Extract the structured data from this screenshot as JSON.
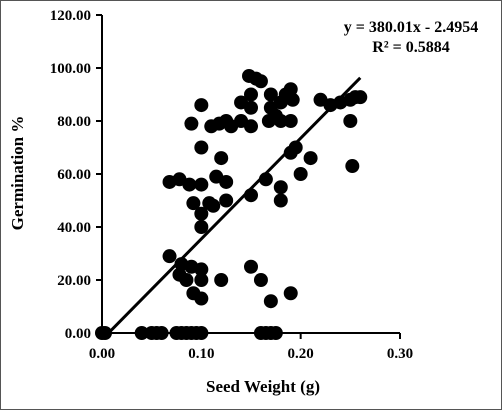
{
  "chart_data": {
    "type": "scatter",
    "title": "",
    "xlabel": "Seed Weight (g)",
    "ylabel": "Germination %",
    "xlim": [
      0,
      0.3
    ],
    "ylim": [
      0,
      120
    ],
    "x_ticks": [
      0.0,
      0.1,
      0.2,
      0.3
    ],
    "x_tick_labels": [
      "0.00",
      "0.10",
      "0.20",
      "0.30"
    ],
    "y_ticks": [
      0,
      20,
      40,
      60,
      80,
      100,
      120
    ],
    "y_tick_labels": [
      "0.00",
      "20.00",
      "40.00",
      "60.00",
      "80.00",
      "100.00",
      "120.00"
    ],
    "grid": false,
    "legend": "none",
    "annotations": [
      "y = 380.01x - 2.4954",
      "R² = 0.5884"
    ],
    "trendline": {
      "slope": 380.01,
      "intercept": -2.4954,
      "x_range": [
        0.007,
        0.26
      ]
    },
    "colors": {
      "points": "#000000",
      "trendline": "#000000",
      "axes": "#000000"
    },
    "series": [
      {
        "points": [
          [
            0.0,
            0
          ],
          [
            0.003,
            0
          ],
          [
            0.04,
            0
          ],
          [
            0.05,
            0
          ],
          [
            0.055,
            0
          ],
          [
            0.06,
            0
          ],
          [
            0.075,
            0
          ],
          [
            0.08,
            0
          ],
          [
            0.085,
            0
          ],
          [
            0.09,
            0
          ],
          [
            0.095,
            0
          ],
          [
            0.1,
            0
          ],
          [
            0.16,
            0
          ],
          [
            0.165,
            0
          ],
          [
            0.17,
            0
          ],
          [
            0.175,
            0
          ],
          [
            0.068,
            57
          ],
          [
            0.078,
            58
          ],
          [
            0.088,
            56
          ],
          [
            0.1,
            56
          ],
          [
            0.092,
            49
          ],
          [
            0.1,
            45
          ],
          [
            0.108,
            49
          ],
          [
            0.112,
            48
          ],
          [
            0.115,
            59
          ],
          [
            0.125,
            50
          ],
          [
            0.125,
            57
          ],
          [
            0.12,
            66
          ],
          [
            0.1,
            40
          ],
          [
            0.1,
            70
          ],
          [
            0.1,
            86
          ],
          [
            0.09,
            79
          ],
          [
            0.11,
            78
          ],
          [
            0.118,
            79
          ],
          [
            0.125,
            80
          ],
          [
            0.13,
            78
          ],
          [
            0.14,
            80
          ],
          [
            0.14,
            87
          ],
          [
            0.15,
            78
          ],
          [
            0.15,
            85
          ],
          [
            0.15,
            90
          ],
          [
            0.148,
            97
          ],
          [
            0.155,
            96
          ],
          [
            0.16,
            95
          ],
          [
            0.165,
            58
          ],
          [
            0.168,
            80
          ],
          [
            0.17,
            85
          ],
          [
            0.17,
            90
          ],
          [
            0.175,
            82
          ],
          [
            0.18,
            80
          ],
          [
            0.18,
            87
          ],
          [
            0.185,
            90
          ],
          [
            0.19,
            80
          ],
          [
            0.192,
            88
          ],
          [
            0.19,
            92
          ],
          [
            0.195,
            70
          ],
          [
            0.19,
            68
          ],
          [
            0.2,
            60
          ],
          [
            0.21,
            66
          ],
          [
            0.22,
            88
          ],
          [
            0.23,
            86
          ],
          [
            0.24,
            87
          ],
          [
            0.25,
            88
          ],
          [
            0.255,
            89
          ],
          [
            0.26,
            89
          ],
          [
            0.25,
            80
          ],
          [
            0.252,
            63
          ],
          [
            0.18,
            55
          ],
          [
            0.18,
            50
          ],
          [
            0.15,
            52
          ],
          [
            0.068,
            29
          ],
          [
            0.078,
            22
          ],
          [
            0.08,
            26
          ],
          [
            0.085,
            20
          ],
          [
            0.09,
            25
          ],
          [
            0.1,
            24
          ],
          [
            0.1,
            20
          ],
          [
            0.092,
            15
          ],
          [
            0.1,
            13
          ],
          [
            0.12,
            20
          ],
          [
            0.15,
            25
          ],
          [
            0.16,
            20
          ],
          [
            0.17,
            12
          ],
          [
            0.19,
            15
          ]
        ]
      }
    ]
  }
}
